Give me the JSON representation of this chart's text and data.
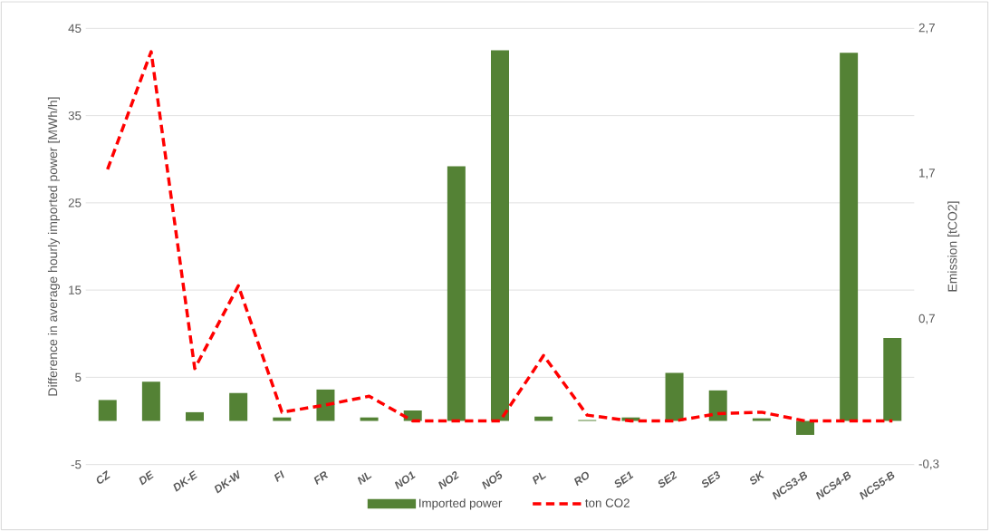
{
  "chart_data": {
    "type": "bar",
    "ylabel": "Difference in average hourly imported power [MWh/h]",
    "y2label": "Emission [tCO2]",
    "categories": [
      "CZ",
      "DE",
      "DK-E",
      "DK-W",
      "FI",
      "FR",
      "NL",
      "NO1",
      "NO2",
      "NO5",
      "PL",
      "RO",
      "SE1",
      "SE2",
      "SE3",
      "SK",
      "NCS3-B",
      "NCS4-B",
      "NCS5-B"
    ],
    "series": [
      {
        "name": "Imported power",
        "color": "#548235",
        "values": [
          2.4,
          4.5,
          1.0,
          3.2,
          0.4,
          3.6,
          0.4,
          1.2,
          29.2,
          42.5,
          0.5,
          0.1,
          0.4,
          5.5,
          3.5,
          0.3,
          -1.6,
          42.2,
          9.5
        ]
      },
      {
        "name": "ton CO2",
        "type": "line",
        "axis": "y2",
        "color": "#ff0000",
        "line_style": "dashed",
        "values": [
          1.73,
          2.54,
          0.36,
          0.93,
          0.06,
          0.11,
          0.17,
          0,
          0,
          0,
          0.45,
          0.04,
          0,
          0,
          0.05,
          0.06,
          0,
          0,
          0
        ]
      }
    ],
    "ylim": [
      -5,
      45
    ],
    "yticks": [
      -5,
      5,
      15,
      25,
      35,
      45
    ],
    "y2lim": [
      -0.3,
      2.7
    ],
    "y2ticks": [
      {
        "value": -0.3,
        "label": "-0,3"
      },
      {
        "value": 0.7,
        "label": "0,7"
      },
      {
        "value": 1.7,
        "label": "1,7"
      },
      {
        "value": 2.7,
        "label": "2,7"
      }
    ],
    "grid": "y",
    "legend": "bottom",
    "marker": "none"
  }
}
